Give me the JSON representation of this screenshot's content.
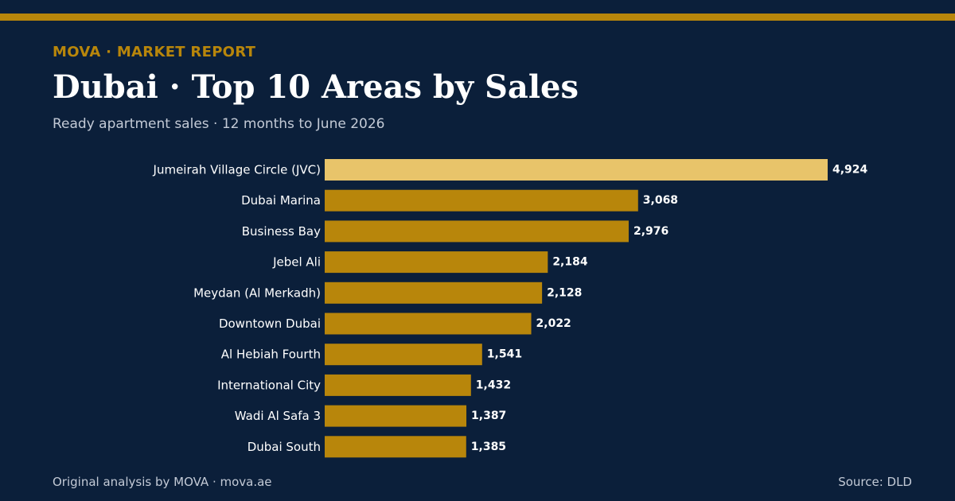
{
  "header": {
    "eyebrow": "MOVA · MARKET REPORT",
    "title": "Dubai · Top 10 Areas by Sales",
    "subtitle": "Ready apartment sales · 12 months to June 2026"
  },
  "footer": {
    "credit": "Original analysis by MOVA · mova.ae",
    "source": "Source: DLD"
  },
  "colors": {
    "background": "#0b1f3a",
    "accent": "#b8860b",
    "highlight": "#e8c46a",
    "text": "#ffffff",
    "muted": "#c3cad6"
  },
  "chart_data": {
    "type": "bar",
    "orientation": "horizontal",
    "categories": [
      "Jumeirah Village Circle (JVC)",
      "Dubai Marina",
      "Business Bay",
      "Jebel Ali",
      "Meydan (Al Merkadh)",
      "Downtown Dubai",
      "Al Hebiah Fourth",
      "International City",
      "Wadi Al Safa 3",
      "Dubai South"
    ],
    "values": [
      4924,
      3068,
      2976,
      2184,
      2128,
      2022,
      1541,
      1432,
      1387,
      1385
    ],
    "value_labels": [
      "4,924",
      "3,068",
      "2,976",
      "2,184",
      "2,128",
      "2,022",
      "1,541",
      "1,432",
      "1,387",
      "1,385"
    ],
    "highlighted_index": 0,
    "xlim": [
      0,
      4924
    ],
    "grid": false,
    "legend": "none"
  }
}
